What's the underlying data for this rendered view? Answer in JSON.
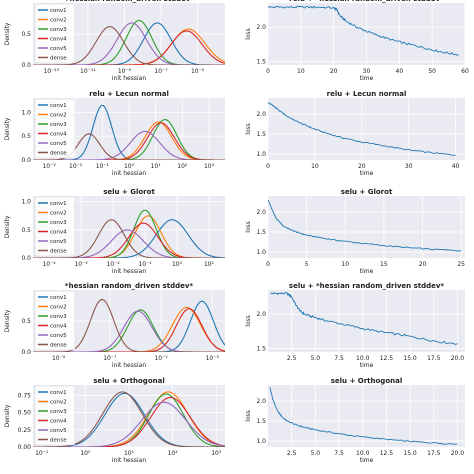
{
  "colors": {
    "conv1": "#1f77b4",
    "conv2": "#ff7f0e",
    "conv3": "#2ca02c",
    "conv4": "#d62728",
    "conv5": "#9467bd",
    "dense": "#8c564b",
    "loss": "#1f77b4",
    "panel_bg": "#eaeaf2",
    "grid": "#ffffff",
    "text": "#222222"
  },
  "legend_labels": [
    "conv1",
    "conv2",
    "conv3",
    "conv4",
    "conv5",
    "dense"
  ],
  "chart_data": [
    {
      "type": "line",
      "row": 0,
      "col": 0,
      "title": "+hessian random_driven stddev*",
      "xlabel": "init hessian",
      "ylabel": "Density",
      "xscale": "log",
      "xlim": [
        -14,
        -3.5
      ],
      "xticks": [
        -13,
        -11,
        -9,
        -7,
        -5
      ],
      "xticklabels": [
        "10⁻¹³",
        "10⁻¹¹",
        "10⁻⁹",
        "10⁻⁷",
        "10⁻⁵"
      ],
      "ylim": [
        0,
        1.0
      ],
      "yticks": [
        0,
        0.5
      ],
      "yticklabels": [
        "0.0",
        "0.5"
      ],
      "grid": true,
      "legend": "upper-left",
      "series": [
        {
          "name": "conv1",
          "mu": -7.2,
          "sigma": 0.75,
          "peak": 0.68
        },
        {
          "name": "conv2",
          "mu": -5.5,
          "sigma": 0.9,
          "peak": 0.58
        },
        {
          "name": "conv3",
          "mu": -8.2,
          "sigma": 0.7,
          "peak": 0.72
        },
        {
          "name": "conv4",
          "mu": -5.6,
          "sigma": 0.85,
          "peak": 0.55
        },
        {
          "name": "conv5",
          "mu": -8.6,
          "sigma": 0.8,
          "peak": 0.68
        },
        {
          "name": "dense",
          "mu": -9.8,
          "sigma": 0.75,
          "peak": 0.62
        }
      ]
    },
    {
      "type": "line",
      "row": 0,
      "col": 1,
      "title": "relu + *hessian random_driven stddev*",
      "xlabel": "time",
      "ylabel": "loss",
      "xlim": [
        0,
        60
      ],
      "xticks": [
        0,
        10,
        20,
        30,
        40,
        50,
        60
      ],
      "xticklabels": [
        "0",
        "10",
        "20",
        "30",
        "40",
        "50",
        "60"
      ],
      "ylim": [
        1.45,
        2.35
      ],
      "yticks": [
        1.5,
        2.0
      ],
      "yticklabels": [
        "1.5",
        "2.0"
      ],
      "grid": true,
      "series": [
        {
          "name": "",
          "x": [
            0,
            5,
            10,
            15,
            20,
            21,
            22,
            24,
            27,
            30,
            34,
            38,
            42,
            46,
            50,
            54,
            58
          ],
          "y": [
            2.29,
            2.29,
            2.29,
            2.29,
            2.28,
            2.25,
            2.16,
            2.08,
            2.0,
            1.94,
            1.87,
            1.81,
            1.76,
            1.72,
            1.67,
            1.63,
            1.6
          ]
        }
      ]
    },
    {
      "type": "line",
      "row": 1,
      "col": 0,
      "title": "relu + Lecun normal",
      "xlabel": "init hessian",
      "ylabel": "Density",
      "xscale": "log",
      "xlim": [
        -3.6,
        3.6
      ],
      "xticks": [
        -3,
        -2,
        -1,
        0,
        1,
        2,
        3
      ],
      "xticklabels": [
        "10⁻³",
        "10⁻²",
        "10⁻¹",
        "10⁰",
        "10¹",
        "10²",
        "10³"
      ],
      "ylim": [
        0,
        1.3
      ],
      "yticks": [
        0,
        0.5,
        1.0
      ],
      "yticklabels": [
        "0.0",
        "0.5",
        "1.0"
      ],
      "grid": true,
      "legend": "upper-left",
      "series": [
        {
          "name": "conv1",
          "mu": -1.0,
          "sigma": 0.35,
          "peak": 1.15
        },
        {
          "name": "conv2",
          "mu": 1.1,
          "sigma": 0.5,
          "peak": 0.8
        },
        {
          "name": "conv3",
          "mu": 1.35,
          "sigma": 0.45,
          "peak": 0.85
        },
        {
          "name": "conv4",
          "mu": 1.2,
          "sigma": 0.5,
          "peak": 0.78
        },
        {
          "name": "conv5",
          "mu": 0.6,
          "sigma": 0.55,
          "peak": 0.6
        },
        {
          "name": "dense",
          "mu": -1.5,
          "sigma": 0.4,
          "peak": 0.55
        }
      ]
    },
    {
      "type": "line",
      "row": 1,
      "col": 1,
      "title": "relu + Lecun normal",
      "xlabel": "time",
      "ylabel": "loss",
      "xlim": [
        0,
        42
      ],
      "xticks": [
        0,
        10,
        20,
        30,
        40
      ],
      "xticklabels": [
        "0",
        "10",
        "20",
        "30",
        "40"
      ],
      "ylim": [
        0.85,
        2.4
      ],
      "yticks": [
        1.0,
        1.5,
        2.0
      ],
      "yticklabels": [
        "1.0",
        "1.5",
        "2.0"
      ],
      "grid": true,
      "series": [
        {
          "name": "",
          "x": [
            0,
            1,
            2,
            4,
            6,
            8,
            10,
            13,
            16,
            20,
            25,
            30,
            35,
            40
          ],
          "y": [
            2.28,
            2.22,
            2.12,
            1.95,
            1.82,
            1.72,
            1.62,
            1.5,
            1.4,
            1.3,
            1.2,
            1.1,
            1.03,
            0.97
          ]
        }
      ]
    },
    {
      "type": "line",
      "row": 2,
      "col": 0,
      "title": "selu + Glorot",
      "xlabel": "init hessian",
      "ylabel": "Density",
      "xscale": "log",
      "xlim": [
        -4.5,
        1.5
      ],
      "xticks": [
        -4,
        -3,
        -2,
        -1,
        0,
        1
      ],
      "xticklabels": [
        "10⁻⁴",
        "10⁻³",
        "10⁻²",
        "10⁻¹",
        "10⁰",
        "10¹"
      ],
      "ylim": [
        0,
        1.1
      ],
      "yticks": [
        0,
        0.5,
        1.0
      ],
      "yticklabels": [
        "0.0",
        "0.5",
        "1.0"
      ],
      "grid": true,
      "legend": "upper-left",
      "series": [
        {
          "name": "conv1",
          "mu": -0.15,
          "sigma": 0.5,
          "peak": 0.68
        },
        {
          "name": "conv2",
          "mu": -0.9,
          "sigma": 0.4,
          "peak": 0.75
        },
        {
          "name": "conv3",
          "mu": -1.0,
          "sigma": 0.35,
          "peak": 0.85
        },
        {
          "name": "conv4",
          "mu": -1.05,
          "sigma": 0.45,
          "peak": 0.62
        },
        {
          "name": "conv5",
          "mu": -1.55,
          "sigma": 0.5,
          "peak": 0.5
        },
        {
          "name": "dense",
          "mu": -2.05,
          "sigma": 0.4,
          "peak": 0.68
        }
      ]
    },
    {
      "type": "line",
      "row": 2,
      "col": 1,
      "title": "selu + Glorot",
      "xlabel": "time",
      "ylabel": "loss",
      "xlim": [
        0,
        25.5
      ],
      "xticks": [
        0,
        5,
        10,
        15,
        20,
        25
      ],
      "xticklabels": [
        "0",
        "5",
        "10",
        "15",
        "20",
        "25"
      ],
      "ylim": [
        0.85,
        2.4
      ],
      "yticks": [
        1.0,
        1.5,
        2.0
      ],
      "yticklabels": [
        "1.0",
        "1.5",
        "2.0"
      ],
      "grid": true,
      "series": [
        {
          "name": "",
          "x": [
            0,
            0.5,
            1,
            2,
            3,
            4,
            5,
            7,
            9,
            12,
            15,
            18,
            21,
            25
          ],
          "y": [
            2.3,
            2.08,
            1.85,
            1.65,
            1.55,
            1.48,
            1.42,
            1.35,
            1.29,
            1.22,
            1.16,
            1.11,
            1.07,
            1.03
          ]
        }
      ]
    },
    {
      "type": "line",
      "row": 3,
      "col": 0,
      "title": "*hessian random_driven stddev*",
      "xlabel": "init hessian",
      "ylabel": "Density",
      "xscale": "log",
      "xlim": [
        -10,
        -2.5
      ],
      "xticks": [
        -9,
        -7,
        -5,
        -3
      ],
      "xticklabels": [
        "10⁻⁹",
        "10⁻⁷",
        "10⁻⁵",
        "10⁻³"
      ],
      "ylim": [
        0,
        1.0
      ],
      "yticks": [
        0,
        0.5
      ],
      "yticklabels": [
        "0.0",
        "0.5"
      ],
      "grid": true,
      "legend": "upper-left",
      "series": [
        {
          "name": "conv1",
          "mu": -3.4,
          "sigma": 0.45,
          "peak": 0.82
        },
        {
          "name": "conv2",
          "mu": -4.0,
          "sigma": 0.55,
          "peak": 0.72
        },
        {
          "name": "conv3",
          "mu": -5.8,
          "sigma": 0.5,
          "peak": 0.68
        },
        {
          "name": "conv4",
          "mu": -3.9,
          "sigma": 0.5,
          "peak": 0.7
        },
        {
          "name": "conv5",
          "mu": -5.9,
          "sigma": 0.55,
          "peak": 0.66
        },
        {
          "name": "dense",
          "mu": -7.3,
          "sigma": 0.45,
          "peak": 0.85
        }
      ]
    },
    {
      "type": "line",
      "row": 3,
      "col": 1,
      "title": "selu + *hessian random_driven stddev*",
      "xlabel": "time",
      "ylabel": "loss",
      "xlim": [
        0,
        20.8
      ],
      "xticks": [
        2.5,
        5.0,
        7.5,
        10.0,
        12.5,
        15.0,
        17.5,
        20.0
      ],
      "xticklabels": [
        "2.5",
        "5.0",
        "7.5",
        "10.0",
        "12.5",
        "15.0",
        "17.5",
        "20.0"
      ],
      "ylim": [
        1.45,
        2.35
      ],
      "yticks": [
        1.5,
        2.0
      ],
      "yticklabels": [
        "1.5",
        "2.0"
      ],
      "grid": true,
      "series": [
        {
          "name": "",
          "x": [
            0.3,
            1,
            2,
            2.5,
            3,
            3.5,
            4,
            5,
            6,
            8,
            10,
            12,
            14,
            16,
            18,
            20
          ],
          "y": [
            2.3,
            2.3,
            2.3,
            2.25,
            2.12,
            2.03,
            1.99,
            1.95,
            1.91,
            1.85,
            1.79,
            1.74,
            1.7,
            1.65,
            1.6,
            1.57
          ]
        }
      ]
    },
    {
      "type": "line",
      "row": 4,
      "col": 0,
      "title": "selu + Orthogonal",
      "xlabel": "init hessian",
      "ylabel": "Density",
      "xscale": "log",
      "xlim": [
        -1.2,
        3.2
      ],
      "xticks": [
        -1,
        0,
        1,
        2,
        3
      ],
      "xticklabels": [
        "10⁻¹",
        "10⁰",
        "10¹",
        "10²",
        "10³"
      ],
      "ylim": [
        0,
        0.9
      ],
      "yticks": [
        0,
        0.25,
        0.5,
        0.75
      ],
      "yticklabels": [
        "0.00",
        "0.25",
        "0.50",
        "0.75"
      ],
      "grid": true,
      "legend": "upper-left",
      "series": [
        {
          "name": "conv1",
          "mu": 0.9,
          "sigma": 0.45,
          "peak": 0.78
        },
        {
          "name": "conv2",
          "mu": 1.9,
          "sigma": 0.45,
          "peak": 0.8
        },
        {
          "name": "conv3",
          "mu": 1.85,
          "sigma": 0.4,
          "peak": 0.77
        },
        {
          "name": "conv4",
          "mu": 1.95,
          "sigma": 0.45,
          "peak": 0.72
        },
        {
          "name": "conv5",
          "mu": 1.8,
          "sigma": 0.5,
          "peak": 0.65
        },
        {
          "name": "dense",
          "mu": 0.85,
          "sigma": 0.45,
          "peak": 0.8
        }
      ]
    },
    {
      "type": "line",
      "row": 4,
      "col": 1,
      "title": "selu + Orthogonal",
      "xlabel": "time",
      "ylabel": "loss",
      "xlim": [
        0,
        20.8
      ],
      "xticks": [
        2.5,
        5.0,
        7.5,
        10.0,
        12.5,
        15.0,
        17.5,
        20.0
      ],
      "xticklabels": [
        "2.5",
        "5.0",
        "7.5",
        "10.0",
        "12.5",
        "15.0",
        "17.5",
        "20.0"
      ],
      "ylim": [
        0.85,
        2.4
      ],
      "yticks": [
        1.0,
        1.5,
        2.0
      ],
      "yticklabels": [
        "1.0",
        "1.5",
        "2.0"
      ],
      "grid": true,
      "series": [
        {
          "name": "",
          "x": [
            0.2,
            0.5,
            1,
            1.5,
            2,
            3,
            4,
            5,
            7,
            9,
            11,
            13,
            15,
            17,
            20
          ],
          "y": [
            2.35,
            2.05,
            1.75,
            1.6,
            1.5,
            1.4,
            1.33,
            1.28,
            1.2,
            1.13,
            1.08,
            1.03,
            0.99,
            0.96,
            0.92
          ]
        }
      ]
    }
  ]
}
